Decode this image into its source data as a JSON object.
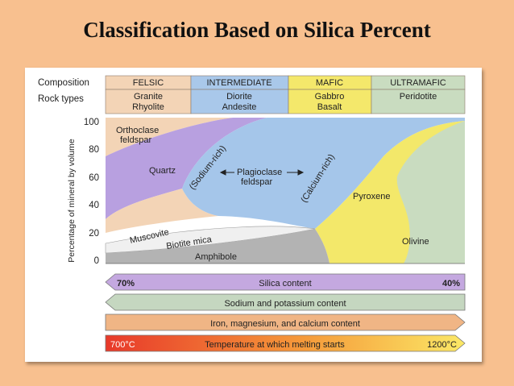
{
  "title": "Classification Based on Silica Percent",
  "header": {
    "row_labels": {
      "composition": "Composition",
      "rock_types": "Rock types"
    },
    "columns": [
      {
        "composition": "FELSIC",
        "rocks": [
          "Granite",
          "Rhyolite"
        ],
        "color": "#f3d4b6"
      },
      {
        "composition": "INTERMEDIATE",
        "rocks": [
          "Diorite",
          "Andesite"
        ],
        "color": "#a9c8ea"
      },
      {
        "composition": "MAFIC",
        "rocks": [
          "Gabbro",
          "Basalt"
        ],
        "color": "#f4e86b"
      },
      {
        "composition": "ULTRAMAFIC",
        "rocks": [
          "Peridotite"
        ],
        "color": "#c9dcc0"
      }
    ]
  },
  "axis": {
    "ylabel": "Percentage of mineral by volume",
    "ticks": [
      "100",
      "80",
      "60",
      "40",
      "20",
      "0"
    ]
  },
  "minerals": {
    "orthoclase": [
      "Orthoclase",
      "feldspar"
    ],
    "quartz": "Quartz",
    "sodium_rich": "(Sodium-rich)",
    "calcium_rich": "(Calcium-rich)",
    "plagioclase": [
      "Plagioclase",
      "feldspar"
    ],
    "pyroxene": "Pyroxene",
    "muscovite": "Muscovite",
    "biotite": "Biotite mica",
    "amphibole": "Amphibole",
    "olivine": "Olivine"
  },
  "bars": {
    "silica": {
      "left": "70%",
      "label": "Silica content",
      "right": "40%",
      "color": "#c4a8e0"
    },
    "sodium_potassium": {
      "label": "Sodium and potassium content",
      "color": "#c5d7c0"
    },
    "iron": {
      "label": "Iron, magnesium, and calcium content",
      "color": "#f0b585"
    },
    "temperature": {
      "left": "700°C",
      "label": "Temperature at which melting starts",
      "right": "1200°C"
    }
  },
  "colors": {
    "background": "#f8c08f",
    "orthoclase_region": "#f3d4b6",
    "quartz_region": "#b8a0e0",
    "plagioclase_region": "#a5c6ea",
    "pyroxene_region": "#f3e86a",
    "olivine_region": "#c9dcc0",
    "amphibole_region": "#b8b8b8"
  }
}
